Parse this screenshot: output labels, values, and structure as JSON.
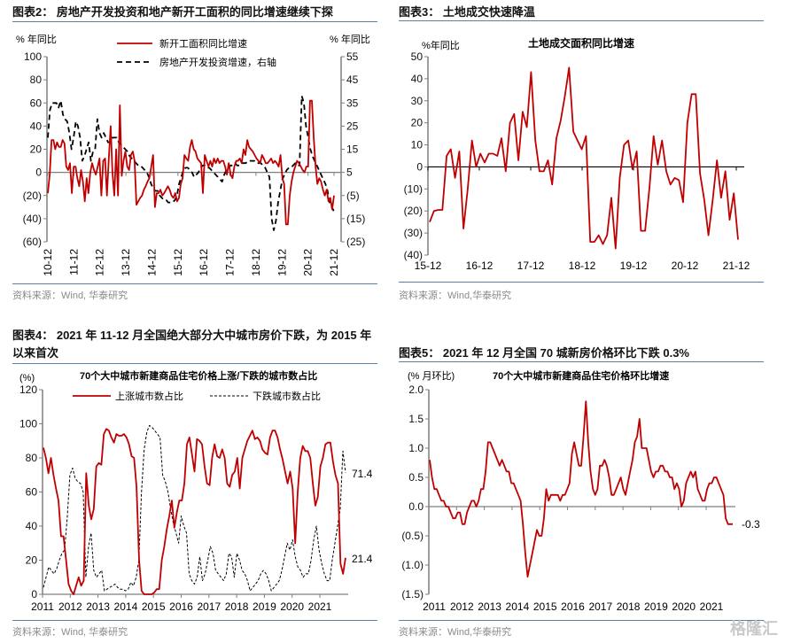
{
  "figures": [
    {
      "title": "图表2：  房地产开发投资和地产新开工面积的同比增速继续下探",
      "source": "资料来源：Wind, 华泰研究"
    },
    {
      "title": "图表3：  土地成交快速降温",
      "source": "资料来源：Wind,华泰研究"
    },
    {
      "title_line1": "图表4：  2021 年 11-12 月全国绝大部分大中城市房价下跌，为 2015 年",
      "title_line2": "以来首次",
      "source": "资料来源：Wind, 华泰研究"
    },
    {
      "title": "图表5：  2021 年 12 月全国 70 城新房价格环比下跌 0.3%",
      "source": "资料来源：Wind,华泰研究"
    }
  ],
  "watermark": "格隆汇",
  "colors": {
    "red": "#c00000",
    "black": "#000000",
    "axis": "#7f7f7f",
    "rule": "#5b7fa6"
  },
  "chart_data": [
    {
      "type": "line",
      "title": "",
      "ylabel_left": "% 年同比",
      "ylabel_right": "% 年同比",
      "ylim_left": [
        -60,
        100
      ],
      "ylim_right": [
        -25,
        55
      ],
      "yticks_left": [
        "100",
        "80",
        "60",
        "40",
        "20",
        "0",
        "(20)",
        "(40)",
        "(60)"
      ],
      "yticks_right": [
        "55",
        "45",
        "35",
        "25",
        "15",
        "5",
        "(5)",
        "(15)",
        "(25)"
      ],
      "x_labels": [
        "10-12",
        "11-12",
        "12-12",
        "13-12",
        "14-12",
        "15-12",
        "16-12",
        "17-12",
        "18-12",
        "19-12",
        "20-12",
        "21-12"
      ],
      "legend_position": "top-center",
      "series": [
        {
          "name": "新开工面积同比增速",
          "axis": "left",
          "style": "solid",
          "values": [
            -18,
            -2,
            28,
            28,
            20,
            26,
            22,
            22,
            28,
            25,
            5,
            2,
            8,
            -18,
            5,
            5,
            -5,
            -12,
            2,
            -8,
            -25,
            -5,
            -18,
            0,
            8,
            2,
            -2,
            5,
            12,
            -20,
            10,
            12,
            -20,
            12,
            40,
            0,
            -20,
            20,
            -20,
            58,
            -3,
            10,
            18,
            5,
            2,
            15,
            18,
            10,
            -28,
            -25,
            -22,
            -20,
            -15,
            -12,
            -8,
            -5,
            5,
            15,
            -30,
            -18,
            -18,
            -15,
            -20,
            -18,
            -15,
            -12,
            -15,
            -20,
            -22,
            -18,
            -25,
            -22,
            -10,
            -5,
            15,
            12,
            10,
            22,
            28,
            20,
            18,
            12,
            10,
            8,
            -18,
            15,
            10,
            5,
            10,
            5,
            12,
            8,
            12,
            8,
            10,
            10,
            5,
            -2,
            8,
            -2,
            -5,
            5,
            10,
            10,
            12,
            8,
            20,
            15,
            28,
            22,
            20,
            18,
            15,
            12,
            10,
            8,
            15,
            12,
            8,
            8,
            10,
            12,
            8,
            10,
            8,
            5,
            15,
            -5,
            -10,
            -45,
            -45,
            -20,
            -8,
            0,
            5,
            10,
            8,
            5,
            2,
            0,
            5,
            5,
            62,
            62,
            30,
            5,
            -10,
            -5,
            -8,
            -15,
            -20,
            -15,
            -25,
            -22,
            -32,
            -20
          ]
        },
        {
          "name": "房地产开发投资增速，右轴",
          "axis": "right",
          "style": "dashed",
          "values": [
            20,
            32,
            35,
            35,
            35,
            33,
            36,
            30,
            28,
            27,
            22,
            15,
            20,
            27,
            25,
            20,
            10,
            12,
            15,
            18,
            10,
            14,
            15,
            28,
            22,
            20,
            22,
            20,
            18,
            18,
            20,
            20,
            20,
            18,
            17,
            16,
            15,
            14,
            12,
            11,
            10,
            9,
            8,
            8,
            7,
            6,
            5,
            3,
            0,
            -2,
            -3,
            -3,
            -5,
            -6,
            -7,
            -7,
            -8,
            -8,
            -8,
            -7,
            -5,
            0,
            3,
            6,
            7,
            7,
            6,
            5,
            3,
            4,
            5,
            7,
            8,
            8,
            7,
            7,
            6,
            5,
            4,
            3,
            2,
            1,
            4,
            6,
            7,
            8,
            8,
            9,
            8,
            8,
            9,
            9,
            9,
            10,
            10,
            10,
            10,
            9,
            9,
            9,
            8,
            7,
            5,
            3,
            -15,
            -20,
            -16,
            -8,
            -3,
            2,
            4,
            6,
            7,
            7,
            8,
            9,
            8,
            8,
            38,
            35,
            25,
            20,
            15,
            12,
            10,
            8,
            6,
            4,
            2,
            0,
            -3,
            -8,
            -10,
            -12
          ]
        }
      ]
    },
    {
      "type": "line",
      "title": "土地成交面积同比增速",
      "ylabel": "%年同比",
      "ylim": [
        -40,
        50
      ],
      "yticks": [
        "50",
        "40",
        "30",
        "20",
        "10",
        "0",
        "(10)",
        "(20)",
        "(30)",
        "(40)"
      ],
      "x_labels": [
        "15-12",
        "16-12",
        "17-12",
        "18-12",
        "19-12",
        "20-12",
        "21-12"
      ],
      "series": [
        {
          "name": "土地成交面积同比增速",
          "style": "solid",
          "values": [
            -25,
            -20,
            -19.5,
            -19.5,
            5,
            8,
            -5,
            7,
            -28,
            -10,
            12,
            0,
            6,
            2,
            6,
            6,
            5,
            13,
            -2,
            20,
            24,
            3,
            25,
            18,
            43,
            12,
            -2,
            -2,
            3,
            -8,
            13,
            21,
            32,
            45,
            16,
            12,
            8,
            14,
            -34,
            -34,
            -31,
            -35,
            -31,
            -14,
            -37,
            -5,
            10,
            12,
            -1,
            7,
            -29,
            -29,
            -10,
            14,
            1,
            12,
            -2,
            -8,
            -5,
            -6,
            -16,
            20,
            33,
            33,
            -3,
            -15,
            -31,
            -15,
            3,
            -14,
            -2,
            -24,
            -12,
            -33
          ]
        }
      ]
    },
    {
      "type": "line",
      "title": "70个大中城市新建商品住宅价格上涨/下跌的城市数占比",
      "ylabel": "(%)",
      "ylim": [
        0,
        120
      ],
      "yticks": [
        "120",
        "100",
        "80",
        "60",
        "40",
        "20",
        "0"
      ],
      "x_labels": [
        "2011",
        "2012",
        "2013",
        "2014",
        "2015",
        "2016",
        "2017",
        "2018",
        "2019",
        "2020",
        "2021"
      ],
      "legend_position": "top",
      "end_labels": [
        "71.4",
        "21.4"
      ],
      "series": [
        {
          "name": "上涨城市数占比",
          "style": "solid",
          "values": [
            86,
            80,
            71,
            80,
            70,
            62,
            55,
            34,
            34,
            20,
            6,
            2,
            0,
            5,
            10,
            5,
            8,
            71,
            52,
            44,
            50,
            75,
            77,
            76,
            94,
            97,
            96,
            92,
            89,
            94,
            93,
            93,
            94,
            92,
            88,
            81,
            80,
            63,
            20,
            2,
            0,
            0,
            0,
            0,
            1,
            3,
            3,
            20,
            28,
            38,
            46,
            55,
            39,
            48,
            55,
            55,
            65,
            88,
            92,
            82,
            72,
            91,
            90,
            88,
            75,
            65,
            64,
            80,
            88,
            81,
            80,
            85,
            80,
            65,
            63,
            70,
            72,
            80,
            62,
            80,
            85,
            90,
            93,
            96,
            91,
            92,
            90,
            85,
            83,
            82,
            92,
            96,
            96,
            92,
            85,
            79,
            72,
            65,
            72,
            62,
            30,
            60,
            80,
            87,
            84,
            84,
            80,
            65,
            52,
            57,
            75,
            80,
            88,
            89,
            89,
            78,
            70,
            65,
            18,
            12,
            21.4
          ]
        },
        {
          "name": "下跌城市数占比",
          "style": "dotted",
          "values": [
            4,
            10,
            16,
            14,
            12,
            15,
            20,
            24,
            26,
            45,
            70,
            74,
            68,
            66,
            65,
            60,
            10,
            28,
            36,
            14,
            10,
            12,
            14,
            2,
            3,
            4,
            5,
            6,
            4,
            3,
            3,
            2,
            3,
            7,
            5,
            10,
            20,
            60,
            85,
            95,
            99,
            98,
            96,
            94,
            92,
            70,
            66,
            60,
            50,
            42,
            36,
            30,
            46,
            40,
            36,
            12,
            8,
            6,
            10,
            22,
            8,
            12,
            20,
            28,
            24,
            14,
            12,
            10,
            8,
            12,
            24,
            22,
            10,
            24,
            20,
            14,
            12,
            8,
            2,
            4,
            6,
            8,
            12,
            14,
            12,
            8,
            2,
            4,
            6,
            8,
            14,
            22,
            30,
            26,
            32,
            22,
            16,
            14,
            10,
            12,
            12,
            20,
            32,
            40,
            26,
            18,
            12,
            8,
            8,
            20,
            30,
            40,
            50,
            84,
            71.4
          ]
        }
      ]
    },
    {
      "type": "line",
      "title": "70个大中城市新建商品住宅价格环比增速",
      "ylabel": "(% 月环比)",
      "ylim": [
        -1.5,
        2.0
      ],
      "yticks": [
        "2.0",
        "1.5",
        "1.0",
        "0.5",
        "0.0",
        "(0.5)",
        "(1.0)",
        "(1.5)"
      ],
      "x_labels": [
        "2011",
        "2012",
        "2013",
        "2014",
        "2015",
        "2016",
        "2017",
        "2018",
        "2019",
        "2020",
        "2021"
      ],
      "end_label": "-0.3",
      "series": [
        {
          "name": "新建商品住宅价格环比增速",
          "style": "solid",
          "values": [
            0.8,
            0.5,
            0.3,
            0.3,
            0.2,
            0.1,
            0.1,
            0.0,
            0.0,
            -0.1,
            -0.2,
            -0.2,
            -0.1,
            -0.1,
            -0.3,
            -0.3,
            -0.1,
            0.0,
            0.1,
            0.1,
            0.0,
            0.1,
            0.3,
            0.3,
            0.6,
            1.1,
            1.1,
            1.0,
            0.9,
            0.8,
            0.7,
            0.8,
            0.7,
            0.6,
            0.6,
            0.4,
            0.4,
            0.3,
            0.2,
            0.1,
            -0.3,
            -0.8,
            -1.2,
            -1.0,
            -0.8,
            -0.6,
            -0.4,
            -0.5,
            -0.5,
            -0.2,
            0.3,
            0.1,
            0.2,
            0.2,
            0.2,
            0.2,
            0.1,
            0.2,
            0.2,
            0.3,
            0.4,
            0.9,
            1.1,
            0.9,
            0.7,
            0.7,
            1.2,
            1.8,
            1.1,
            0.6,
            0.3,
            0.2,
            0.3,
            0.7,
            0.7,
            0.8,
            0.7,
            0.5,
            0.2,
            0.2,
            0.3,
            0.4,
            0.5,
            0.3,
            0.2,
            0.4,
            0.6,
            0.8,
            1.1,
            1.2,
            1.5,
            1.0,
            1.0,
            1.0,
            0.8,
            0.6,
            0.5,
            0.6,
            0.6,
            0.7,
            0.7,
            0.6,
            0.6,
            0.5,
            0.5,
            0.3,
            0.4,
            0.3,
            0.0,
            0.1,
            0.4,
            0.5,
            0.6,
            0.5,
            0.6,
            0.3,
            0.2,
            0.1,
            0.1,
            0.3,
            0.4,
            0.4,
            0.5,
            0.5,
            0.4,
            0.3,
            0.2,
            -0.2,
            -0.3,
            -0.3,
            -0.3
          ]
        }
      ]
    }
  ]
}
